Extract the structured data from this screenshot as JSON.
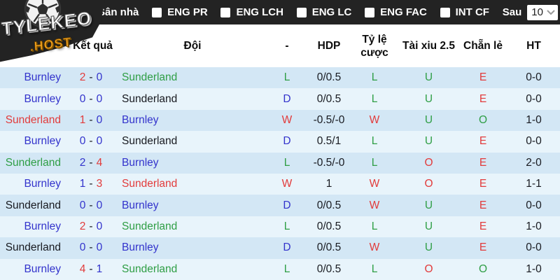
{
  "colors": {
    "bar": "#232323",
    "row_odd": "#d3e7f5",
    "row_even": "#e8f4fb",
    "blue": "#3333cc",
    "green": "#2f9e45",
    "red": "#e23b3b",
    "dark": "#181a20",
    "logo_orange": "#f7a41d"
  },
  "logo": {
    "title": "TYLEKEO",
    "subtitle": ".HOST"
  },
  "topbar": {
    "filters": [
      "Sân nhà",
      "ENG PR",
      "ENG LCH",
      "ENG LC",
      "ENG FAC",
      "INT CF"
    ],
    "after_label": "Sau",
    "after_value": "10"
  },
  "table": {
    "headers": {
      "result": "Kết quả",
      "team": "Đội",
      "dash": "-",
      "hdp": "HDP",
      "odds_line1": "Tỷ lệ",
      "odds_line2": "cược",
      "over_under": "Tài xiu 2.5",
      "odd_even": "Chẵn lẻ",
      "ht": "HT"
    },
    "score_separator": "-",
    "rows": [
      {
        "home": {
          "v": "Burnley",
          "c": "blue"
        },
        "s1": {
          "v": "2",
          "c": "red"
        },
        "s2": {
          "v": "0",
          "c": "blue"
        },
        "away": {
          "v": "Sunderland",
          "c": "green"
        },
        "res": {
          "v": "L",
          "c": "green"
        },
        "hdp": "0/0.5",
        "odds": {
          "v": "L",
          "c": "green"
        },
        "ou": {
          "v": "U",
          "c": "green"
        },
        "oe": {
          "v": "E",
          "c": "red"
        },
        "ht": "0-0"
      },
      {
        "home": {
          "v": "Burnley",
          "c": "blue"
        },
        "s1": {
          "v": "0",
          "c": "blue"
        },
        "s2": {
          "v": "0",
          "c": "blue"
        },
        "away": {
          "v": "Sunderland",
          "c": "dark"
        },
        "res": {
          "v": "D",
          "c": "blue"
        },
        "hdp": "0/0.5",
        "odds": {
          "v": "L",
          "c": "green"
        },
        "ou": {
          "v": "U",
          "c": "green"
        },
        "oe": {
          "v": "E",
          "c": "red"
        },
        "ht": "0-0"
      },
      {
        "home": {
          "v": "Sunderland",
          "c": "red"
        },
        "s1": {
          "v": "1",
          "c": "red"
        },
        "s2": {
          "v": "0",
          "c": "blue"
        },
        "away": {
          "v": "Burnley",
          "c": "blue"
        },
        "res": {
          "v": "W",
          "c": "red"
        },
        "hdp": "-0.5/-0",
        "odds": {
          "v": "W",
          "c": "red"
        },
        "ou": {
          "v": "U",
          "c": "green"
        },
        "oe": {
          "v": "O",
          "c": "green"
        },
        "ht": "1-0"
      },
      {
        "home": {
          "v": "Burnley",
          "c": "blue"
        },
        "s1": {
          "v": "0",
          "c": "blue"
        },
        "s2": {
          "v": "0",
          "c": "blue"
        },
        "away": {
          "v": "Sunderland",
          "c": "dark"
        },
        "res": {
          "v": "D",
          "c": "blue"
        },
        "hdp": "0.5/1",
        "odds": {
          "v": "L",
          "c": "green"
        },
        "ou": {
          "v": "U",
          "c": "green"
        },
        "oe": {
          "v": "E",
          "c": "red"
        },
        "ht": "0-0"
      },
      {
        "home": {
          "v": "Sunderland",
          "c": "green"
        },
        "s1": {
          "v": "2",
          "c": "blue"
        },
        "s2": {
          "v": "4",
          "c": "red"
        },
        "away": {
          "v": "Burnley",
          "c": "blue"
        },
        "res": {
          "v": "L",
          "c": "green"
        },
        "hdp": "-0.5/-0",
        "odds": {
          "v": "L",
          "c": "green"
        },
        "ou": {
          "v": "O",
          "c": "red"
        },
        "oe": {
          "v": "E",
          "c": "red"
        },
        "ht": "2-0"
      },
      {
        "home": {
          "v": "Burnley",
          "c": "blue"
        },
        "s1": {
          "v": "1",
          "c": "blue"
        },
        "s2": {
          "v": "3",
          "c": "red"
        },
        "away": {
          "v": "Sunderland",
          "c": "red"
        },
        "res": {
          "v": "W",
          "c": "red"
        },
        "hdp": "1",
        "odds": {
          "v": "W",
          "c": "red"
        },
        "ou": {
          "v": "O",
          "c": "red"
        },
        "oe": {
          "v": "E",
          "c": "red"
        },
        "ht": "1-1"
      },
      {
        "home": {
          "v": "Sunderland",
          "c": "dark"
        },
        "s1": {
          "v": "0",
          "c": "blue"
        },
        "s2": {
          "v": "0",
          "c": "blue"
        },
        "away": {
          "v": "Burnley",
          "c": "blue"
        },
        "res": {
          "v": "D",
          "c": "blue"
        },
        "hdp": "0/0.5",
        "odds": {
          "v": "W",
          "c": "red"
        },
        "ou": {
          "v": "U",
          "c": "green"
        },
        "oe": {
          "v": "E",
          "c": "red"
        },
        "ht": "0-0"
      },
      {
        "home": {
          "v": "Burnley",
          "c": "blue"
        },
        "s1": {
          "v": "2",
          "c": "red"
        },
        "s2": {
          "v": "0",
          "c": "blue"
        },
        "away": {
          "v": "Sunderland",
          "c": "green"
        },
        "res": {
          "v": "L",
          "c": "green"
        },
        "hdp": "0/0.5",
        "odds": {
          "v": "L",
          "c": "green"
        },
        "ou": {
          "v": "U",
          "c": "green"
        },
        "oe": {
          "v": "E",
          "c": "red"
        },
        "ht": "1-0"
      },
      {
        "home": {
          "v": "Sunderland",
          "c": "dark"
        },
        "s1": {
          "v": "0",
          "c": "blue"
        },
        "s2": {
          "v": "0",
          "c": "blue"
        },
        "away": {
          "v": "Burnley",
          "c": "blue"
        },
        "res": {
          "v": "D",
          "c": "blue"
        },
        "hdp": "0/0.5",
        "odds": {
          "v": "W",
          "c": "red"
        },
        "ou": {
          "v": "U",
          "c": "green"
        },
        "oe": {
          "v": "E",
          "c": "red"
        },
        "ht": "0-0"
      },
      {
        "home": {
          "v": "Burnley",
          "c": "blue"
        },
        "s1": {
          "v": "4",
          "c": "red"
        },
        "s2": {
          "v": "1",
          "c": "blue"
        },
        "away": {
          "v": "Sunderland",
          "c": "green"
        },
        "res": {
          "v": "L",
          "c": "green"
        },
        "hdp": "0/0.5",
        "odds": {
          "v": "L",
          "c": "green"
        },
        "ou": {
          "v": "O",
          "c": "red"
        },
        "oe": {
          "v": "O",
          "c": "green"
        },
        "ht": "1-0"
      }
    ]
  }
}
